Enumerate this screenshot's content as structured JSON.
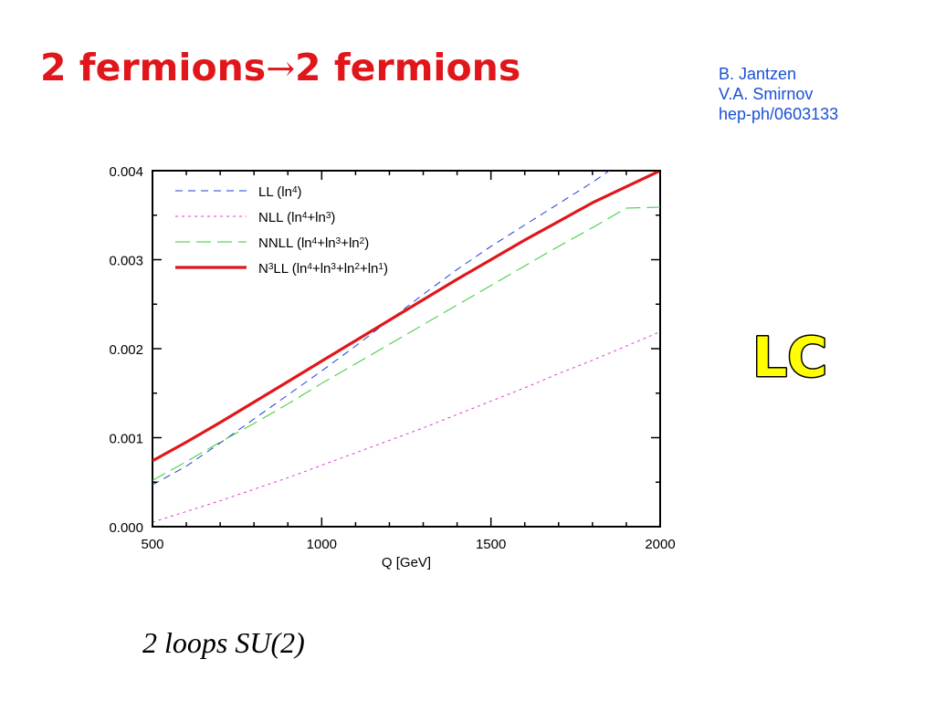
{
  "slide": {
    "title_left": "2 fermions",
    "title_arrow": "→",
    "title_right": "2 fermions",
    "credits": [
      "B. Jantzen",
      "V.A. Smirnov",
      "hep-ph/0603133"
    ],
    "badge": "LC",
    "subtitle": "2 loops SU(2)",
    "title_color": "#e0161b",
    "credit_color": "#1a50d6",
    "badge_color": "#ffff00"
  },
  "chart_data": {
    "type": "line",
    "title": "",
    "xlabel": "Q [GeV]",
    "ylabel": "",
    "xlim": [
      500,
      2000
    ],
    "ylim": [
      0.0,
      0.004
    ],
    "xticks": [
      500,
      1000,
      1500,
      2000
    ],
    "xtick_labels": [
      "500",
      "1000",
      "1500",
      "2000"
    ],
    "yticks": [
      0.0,
      0.001,
      0.002,
      0.003,
      0.004
    ],
    "ytick_labels": [
      "0.000",
      "0.001",
      "0.002",
      "0.003",
      "0.004"
    ],
    "grid": false,
    "legend_position": "top-left",
    "series": [
      {
        "name": "LL (ln4)",
        "legend": {
          "parts": [
            {
              "t": "LL (ln"
            },
            {
              "t": "4",
              "sup": true
            },
            {
              "t": ")"
            }
          ]
        },
        "color": "#1f3fd8",
        "style": "dashed",
        "x": [
          500,
          600,
          700,
          800,
          900,
          1000,
          1100,
          1200,
          1300,
          1400,
          1500,
          1600,
          1700,
          1800,
          1850
        ],
        "y": [
          0.00047,
          0.00068,
          0.00094,
          0.00121,
          0.00148,
          0.00175,
          0.00203,
          0.00232,
          0.00261,
          0.00289,
          0.00315,
          0.00339,
          0.00363,
          0.00387,
          0.004
        ]
      },
      {
        "name": "NLL (ln4+ln3)",
        "legend": {
          "parts": [
            {
              "t": "NLL (ln"
            },
            {
              "t": "4",
              "sup": true
            },
            {
              "t": "+ln"
            },
            {
              "t": "3",
              "sup": true
            },
            {
              "t": ")"
            }
          ]
        },
        "color": "#e03adc",
        "style": "dotted",
        "x": [
          500,
          600,
          700,
          800,
          900,
          1000,
          1100,
          1200,
          1300,
          1400,
          1500,
          1600,
          1700,
          1800,
          1900,
          2000
        ],
        "y": [
          5e-05,
          0.00017,
          0.00029,
          0.00042,
          0.00055,
          0.00069,
          0.00083,
          0.00097,
          0.00111,
          0.00126,
          0.00141,
          0.00156,
          0.00172,
          0.00187,
          0.00203,
          0.00219
        ]
      },
      {
        "name": "NNLL (ln4+ln3+ln2)",
        "legend": {
          "parts": [
            {
              "t": "NNLL (ln"
            },
            {
              "t": "4",
              "sup": true
            },
            {
              "t": "+ln"
            },
            {
              "t": "3",
              "sup": true
            },
            {
              "t": "+ln"
            },
            {
              "t": "2",
              "sup": true
            },
            {
              "t": ")"
            }
          ]
        },
        "color": "#33cc33",
        "style": "longdash",
        "x": [
          500,
          600,
          700,
          800,
          900,
          1000,
          1100,
          1200,
          1300,
          1400,
          1500,
          1600,
          1700,
          1800,
          1900,
          2000
        ],
        "y": [
          0.00052,
          0.00073,
          0.00095,
          0.00116,
          0.00138,
          0.00161,
          0.00183,
          0.00205,
          0.00227,
          0.00249,
          0.00271,
          0.00293,
          0.00315,
          0.00336,
          0.00358,
          0.00359
        ]
      },
      {
        "name": "N3LL (ln4+ln3+ln2+ln1)",
        "legend": {
          "parts": [
            {
              "t": "N"
            },
            {
              "t": "3",
              "sup": true
            },
            {
              "t": "LL (ln"
            },
            {
              "t": "4",
              "sup": true
            },
            {
              "t": "+ln"
            },
            {
              "t": "3",
              "sup": true
            },
            {
              "t": "+ln"
            },
            {
              "t": "2",
              "sup": true
            },
            {
              "t": "+ln"
            },
            {
              "t": "1",
              "sup": true
            },
            {
              "t": ")"
            }
          ]
        },
        "color": "#e0161b",
        "style": "solid",
        "x": [
          500,
          600,
          700,
          800,
          900,
          1000,
          1100,
          1200,
          1300,
          1400,
          1500,
          1600,
          1700,
          1800,
          1900,
          2000
        ],
        "y": [
          0.00074,
          0.00095,
          0.00117,
          0.0014,
          0.00163,
          0.00186,
          0.00209,
          0.00232,
          0.00255,
          0.00278,
          0.003,
          0.00322,
          0.00343,
          0.00364,
          0.00382,
          0.004
        ]
      }
    ]
  }
}
